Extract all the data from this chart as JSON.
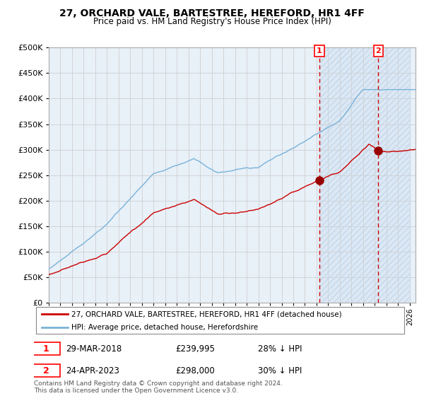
{
  "title": "27, ORCHARD VALE, BARTESTREE, HEREFORD, HR1 4FF",
  "subtitle": "Price paid vs. HM Land Registry's House Price Index (HPI)",
  "legend_line1": "27, ORCHARD VALE, BARTESTREE, HEREFORD, HR1 4FF (detached house)",
  "legend_line2": "HPI: Average price, detached house, Herefordshire",
  "annotation1_date": "29-MAR-2018",
  "annotation1_price": "£239,995",
  "annotation1_hpi": "28% ↓ HPI",
  "annotation2_date": "24-APR-2023",
  "annotation2_price": "£298,000",
  "annotation2_hpi": "30% ↓ HPI",
  "footer": "Contains HM Land Registry data © Crown copyright and database right 2024.\nThis data is licensed under the Open Government Licence v3.0.",
  "hpi_color": "#7ab3d9",
  "price_color": "#cc0000",
  "marker_color": "#990000",
  "vline_color": "#cc0000",
  "bg_color": "#e8f0f8",
  "ylim": [
    0,
    500000
  ],
  "yticks": [
    0,
    50000,
    100000,
    150000,
    200000,
    250000,
    300000,
    350000,
    400000,
    450000,
    500000
  ],
  "vline1_x": 2018.24,
  "vline2_x": 2023.31,
  "marker1_x": 2018.24,
  "marker1_y": 239995,
  "marker2_x": 2023.31,
  "marker2_y": 298000,
  "shade_start": 2018.24,
  "shade_end": 2026.0,
  "xmin": 1995.0,
  "xmax": 2026.5
}
